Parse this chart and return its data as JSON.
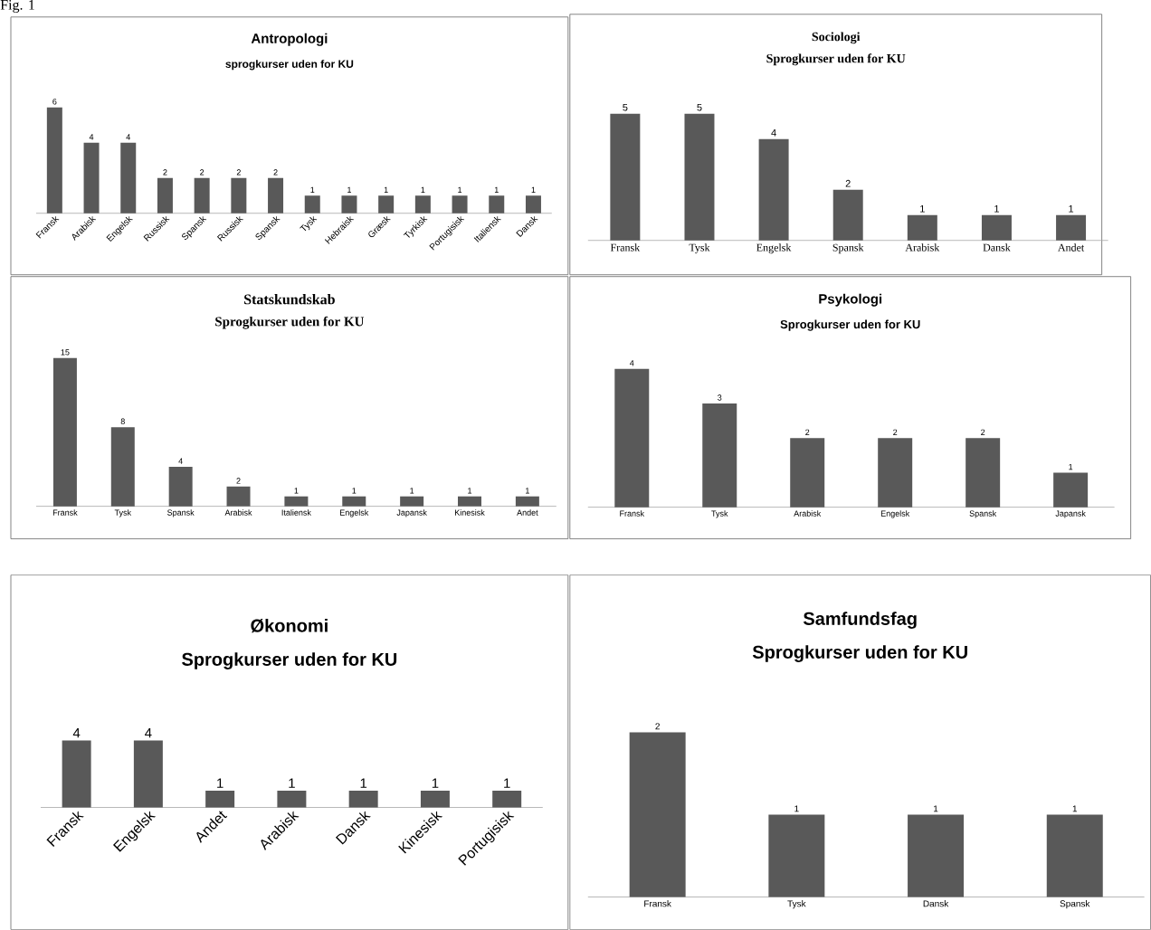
{
  "chart_data": [
    {
      "type": "bar",
      "title": "Antropologi",
      "subtitle": "sprogkurser uden for KU",
      "annotations": [
        "Fig. 1"
      ],
      "color": "#595959",
      "data_labels": true,
      "categories": [
        "Fransk",
        "Arabisk",
        "Engelsk",
        "Russisk",
        "Spansk",
        "Russisk",
        "Spansk",
        "Tysk",
        "Hebraisk",
        "Græsk",
        "Tyrkisk",
        "Portugisisk",
        "Italiensk",
        "Dansk"
      ],
      "values": [
        6,
        4,
        4,
        2,
        2,
        2,
        2,
        1,
        1,
        1,
        1,
        1,
        1,
        1
      ]
    },
    {
      "type": "bar",
      "title": "Sociologi",
      "subtitle": "Sprogkurser uden for KU",
      "color": "#595959",
      "data_labels": true,
      "categories": [
        "Fransk",
        "Tysk",
        "Engelsk",
        "Spansk",
        "Arabisk",
        "Dansk",
        "Andet"
      ],
      "values": [
        5,
        5,
        4,
        2,
        1,
        1,
        1
      ]
    },
    {
      "type": "bar",
      "title": "Statskundskab",
      "subtitle": "Sprogkurser uden for KU",
      "color": "#595959",
      "data_labels": true,
      "categories": [
        "Fransk",
        "Tysk",
        "Spansk",
        "Arabisk",
        "Italiensk",
        "Engelsk",
        "Japansk",
        "Kinesisk",
        "Andet"
      ],
      "values": [
        15,
        8,
        4,
        2,
        1,
        1,
        1,
        1,
        1
      ]
    },
    {
      "type": "bar",
      "title": "Psykologi",
      "subtitle": "Sprogkurser uden for KU",
      "color": "#595959",
      "data_labels": true,
      "categories": [
        "Fransk",
        "Tysk",
        "Arabisk",
        "Engelsk",
        "Spansk",
        "Japansk"
      ],
      "values": [
        4,
        3,
        2,
        2,
        2,
        1
      ]
    },
    {
      "type": "bar",
      "title": "Økonomi",
      "subtitle": "Sprogkurser uden for KU",
      "color": "#595959",
      "data_labels": true,
      "categories": [
        "Fransk",
        "Engelsk",
        "Andet",
        "Arabisk",
        "Dansk",
        "Kinesisk",
        "Portugisisk"
      ],
      "values": [
        4,
        4,
        1,
        1,
        1,
        1,
        1
      ]
    },
    {
      "type": "bar",
      "title": "Samfundsfag",
      "subtitle": "Sprogkurser uden for KU",
      "color": "#595959",
      "data_labels": true,
      "categories": [
        "Fransk",
        "Tysk",
        "Dansk",
        "Spansk"
      ],
      "values": [
        2,
        1,
        1,
        1
      ]
    }
  ]
}
